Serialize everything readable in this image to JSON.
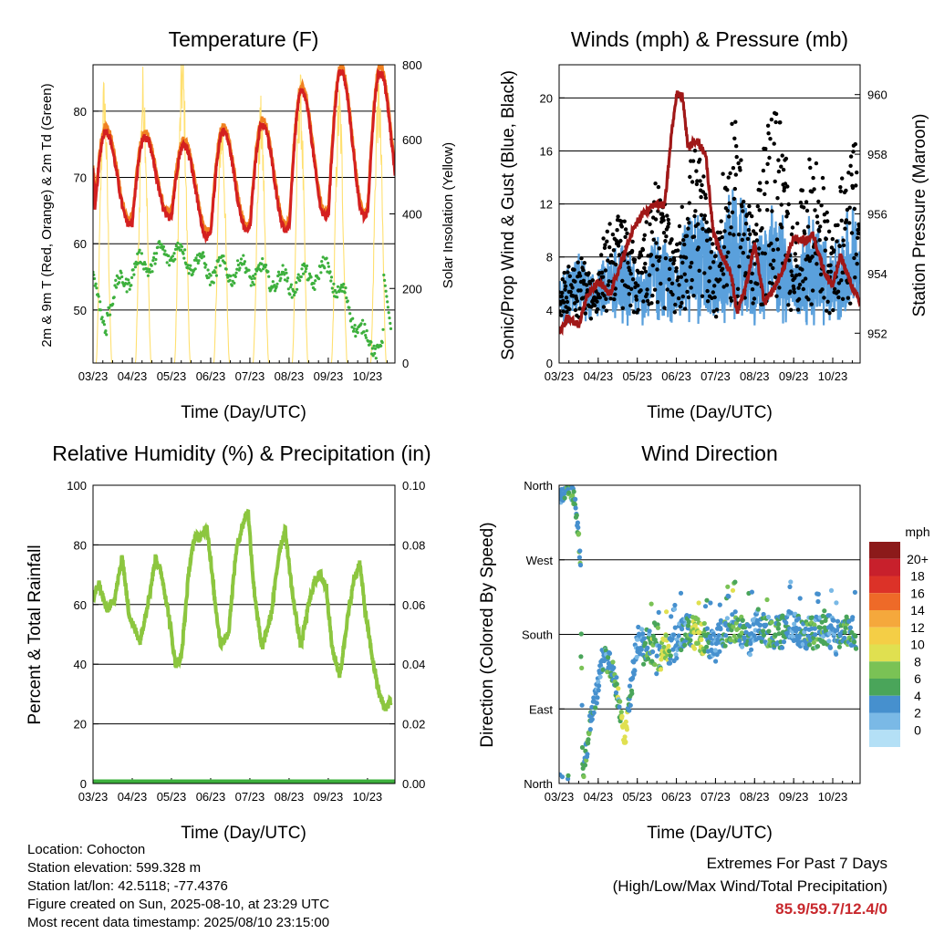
{
  "charts": {
    "temperature": {
      "title": "Temperature (F)",
      "ylabel_left": "2m & 9m T (Red, Orange) & 2m Td (Green)",
      "ylabel_right": "Solar Insolation (Yellow)",
      "xlabel": "Time (Day/UTC)"
    },
    "winds": {
      "title": "Winds (mph) & Pressure (mb)",
      "ylabel_left": "Sonic/Prop Wind & Gust (Blue, Black)",
      "ylabel_right": "Station Pressure (Maroon)",
      "xlabel": "Time (Day/UTC)"
    },
    "humidity": {
      "title": "Relative Humidity (%) & Precipitation (in)",
      "ylabel_left": "Percent & Total Rainfall",
      "xlabel": "Time (Day/UTC)"
    },
    "direction": {
      "title": "Wind Direction",
      "ylabel_left": "Direction (Colored By Speed)",
      "xlabel": "Time (Day/UTC)",
      "legend_title": "mph"
    }
  },
  "info": {
    "location": "Location: Cohocton",
    "elevation": "Station elevation: 599.328 m",
    "latlon": "Station lat/lon: 42.5118; -77.4376",
    "created": "Figure created on Sun, 2025-08-10, at 23:29 UTC",
    "timestamp": "Most recent data timestamp: 2025/08/10 23:15:00"
  },
  "extremes": {
    "line1": "Extremes For Past 7 Days",
    "line2": "(High/Low/Max Wind/Total Precipitation)",
    "values": "85.9/59.7/12.4/0"
  },
  "colors": {
    "temp_2m": "#d42020",
    "temp_9m": "#f08020",
    "dewpoint": "#3db03d",
    "solar": "#ffe070",
    "wind": "#5aa0dc",
    "gust": "#000000",
    "pressure": "#a01818",
    "rh": "#8cc63f",
    "precip": "#3db03d"
  },
  "chart_data": [
    {
      "type": "line",
      "name": "temperature",
      "x_ticks": [
        "03/23",
        "04/23",
        "05/23",
        "06/23",
        "07/23",
        "08/23",
        "09/23",
        "10/23"
      ],
      "x_range": [
        0,
        7.7
      ],
      "ylim_left": [
        42,
        87
      ],
      "yticks_left": [
        50,
        60,
        70,
        80
      ],
      "ylim_right": [
        0,
        800
      ],
      "yticks_right": [
        0,
        200,
        400,
        600,
        800
      ],
      "daily_temp_max": [
        77,
        76,
        75,
        77,
        78,
        83,
        86
      ],
      "daily_temp_min": [
        61,
        63,
        64,
        61,
        62,
        62,
        64
      ],
      "daily_dewpoint": [
        48,
        56,
        59,
        56,
        56,
        54,
        56,
        45
      ],
      "daily_solar_peak": [
        780,
        810,
        860,
        700,
        720,
        790,
        760,
        790
      ]
    },
    {
      "type": "scatter",
      "name": "winds_pressure",
      "x_ticks": [
        "03/23",
        "04/23",
        "05/23",
        "06/23",
        "07/23",
        "08/23",
        "09/23",
        "10/23"
      ],
      "x_range": [
        0,
        7.7
      ],
      "ylim_left": [
        0,
        22.5
      ],
      "yticks_left": [
        0,
        4,
        8,
        12,
        16,
        20
      ],
      "ylim_right": [
        951,
        961
      ],
      "yticks_right": [
        952,
        954,
        956,
        958,
        960
      ],
      "pressure": [
        [
          0,
          952
        ],
        [
          0.2,
          952.5
        ],
        [
          0.5,
          952.3
        ],
        [
          0.7,
          953.2
        ],
        [
          1,
          953.7
        ],
        [
          1.3,
          953.3
        ],
        [
          1.6,
          954.4
        ],
        [
          1.9,
          955.5
        ],
        [
          2.1,
          955.9
        ],
        [
          2.4,
          956.3
        ],
        [
          2.7,
          956.3
        ],
        [
          2.9,
          959.0
        ],
        [
          3.0,
          960.0
        ],
        [
          3.15,
          960.0
        ],
        [
          3.3,
          958.2
        ],
        [
          3.5,
          958.5
        ],
        [
          3.75,
          958.0
        ],
        [
          3.95,
          955.3
        ],
        [
          4.2,
          954.5
        ],
        [
          4.4,
          954.0
        ],
        [
          4.55,
          952.7
        ],
        [
          4.8,
          953.7
        ],
        [
          5.0,
          955.0
        ],
        [
          5.25,
          953.0
        ],
        [
          5.5,
          953.5
        ],
        [
          5.75,
          954.2
        ],
        [
          6.0,
          955.2
        ],
        [
          6.3,
          955.1
        ],
        [
          6.5,
          955.3
        ],
        [
          6.8,
          954.0
        ],
        [
          7.0,
          953.6
        ],
        [
          7.2,
          954.6
        ],
        [
          7.45,
          953.7
        ],
        [
          7.7,
          953.0
        ]
      ],
      "daily_gust_max": [
        8,
        12,
        14,
        16,
        18,
        20,
        16,
        17
      ],
      "daily_wind_max": [
        7,
        8,
        9,
        11,
        12,
        11,
        10,
        11
      ]
    },
    {
      "type": "line",
      "name": "humidity_precip",
      "x_ticks": [
        "03/23",
        "04/23",
        "05/23",
        "06/23",
        "07/23",
        "08/23",
        "09/23",
        "10/23"
      ],
      "x_range": [
        0,
        7.7
      ],
      "ylim_left": [
        0,
        100
      ],
      "yticks_left": [
        0,
        20,
        40,
        60,
        80,
        100
      ],
      "ylim_right": [
        0,
        0.1
      ],
      "yticks_right": [
        0.0,
        0.02,
        0.04,
        0.06,
        0.08,
        0.1
      ],
      "rh": [
        [
          0,
          62
        ],
        [
          0.15,
          67
        ],
        [
          0.35,
          58
        ],
        [
          0.55,
          62
        ],
        [
          0.75,
          76
        ],
        [
          0.9,
          58
        ],
        [
          1.05,
          52
        ],
        [
          1.2,
          48
        ],
        [
          1.45,
          64
        ],
        [
          1.6,
          76
        ],
        [
          1.75,
          70
        ],
        [
          1.95,
          55
        ],
        [
          2.1,
          40
        ],
        [
          2.25,
          42
        ],
        [
          2.45,
          72
        ],
        [
          2.6,
          83
        ],
        [
          2.75,
          82
        ],
        [
          2.9,
          87
        ],
        [
          3.1,
          62
        ],
        [
          3.25,
          47
        ],
        [
          3.45,
          50
        ],
        [
          3.65,
          78
        ],
        [
          3.8,
          86
        ],
        [
          3.95,
          92
        ],
        [
          4.1,
          66
        ],
        [
          4.3,
          45
        ],
        [
          4.55,
          57
        ],
        [
          4.75,
          78
        ],
        [
          4.9,
          85
        ],
        [
          5.1,
          62
        ],
        [
          5.3,
          46
        ],
        [
          5.5,
          60
        ],
        [
          5.65,
          68
        ],
        [
          5.8,
          70
        ],
        [
          5.95,
          66
        ],
        [
          6.1,
          45
        ],
        [
          6.3,
          36
        ],
        [
          6.45,
          52
        ],
        [
          6.65,
          68
        ],
        [
          6.8,
          74
        ],
        [
          6.95,
          57
        ],
        [
          7.15,
          40
        ],
        [
          7.3,
          30
        ],
        [
          7.45,
          25
        ],
        [
          7.6,
          28
        ]
      ],
      "precip_total": 0.0
    },
    {
      "type": "scatter",
      "name": "wind_direction",
      "x_ticks": [
        "03/23",
        "04/23",
        "05/23",
        "06/23",
        "07/23",
        "08/23",
        "09/23",
        "10/23"
      ],
      "x_range": [
        0,
        7.7
      ],
      "y_ticks": [
        "North",
        "East",
        "South",
        "West",
        "North"
      ],
      "ylim": [
        0,
        360
      ],
      "legend_values": [
        "0",
        "2",
        "4",
        "6",
        "8",
        "10",
        "12",
        "14",
        "16",
        "18",
        "20+"
      ],
      "legend_colors": [
        "#b4e0f6",
        "#7ab9e6",
        "#4690ce",
        "#4aa55a",
        "#7ac255",
        "#e0e050",
        "#f4ce46",
        "#f5a83c",
        "#ee6a28",
        "#dc3228",
        "#c8202c",
        "#8c1a1a"
      ]
    }
  ]
}
